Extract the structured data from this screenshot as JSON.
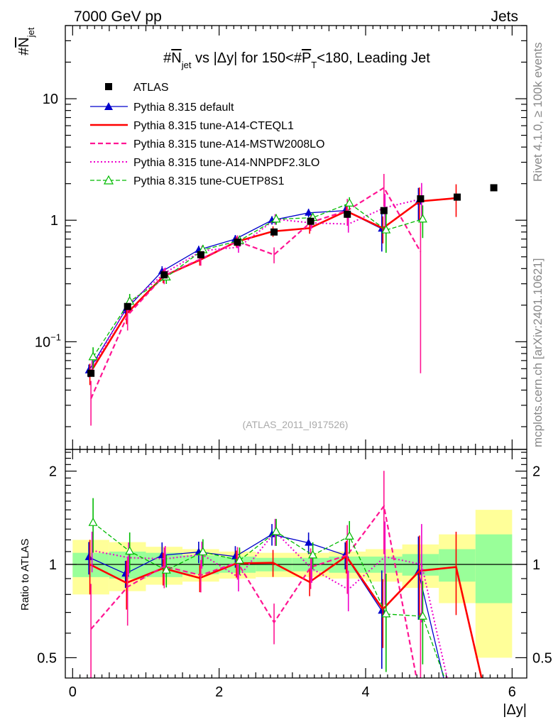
{
  "header": {
    "left": "7000 GeV pp",
    "right": "Jets",
    "side_top": "Rivet 4.1.0, ≥ 100k events",
    "side_bottom": "mcplots.cern.ch [arXiv:2401.10621]",
    "watermark": "(ATLAS_2011_I917526)"
  },
  "colors": {
    "data": "#000000",
    "default": "#0000cc",
    "cteql1": "#ff0000",
    "mstw": "#ff1493",
    "nnpdf": "#ee00cc",
    "cuetp": "#00bb00",
    "band_inner": "#99ff99",
    "band_outer": "#ffff99"
  },
  "chart_data": {
    "type": "line",
    "title": "#N_jet vs |Δy| for 150<#P_T<180, Leading Jet",
    "title_parts": {
      "a": "#",
      "b": "N",
      "c": "jet",
      "d": " vs |Δy| for 150<#",
      "e": "P",
      "f": "T",
      "g": "<180, Leading Jet"
    },
    "ylabel_main": {
      "a": "#",
      "b": "N",
      "c": "jet"
    },
    "ylabel_ratio": "Ratio to ATLAS",
    "xlabel": "|Δy|",
    "xlim": [
      -0.1,
      6.2
    ],
    "ylim_main": [
      0.013,
      40
    ],
    "yscale_main": "log",
    "ylim_ratio": [
      0.43,
      2.35
    ],
    "yscale_ratio": "log",
    "x_ticks": [
      {
        "v": 0,
        "label": "0"
      },
      {
        "v": 2,
        "label": "2"
      },
      {
        "v": 4,
        "label": "4"
      },
      {
        "v": 6,
        "label": "6"
      }
    ],
    "main_y_ticks": [
      {
        "v": 0.1,
        "label": "10",
        "exp": "−1"
      },
      {
        "v": 1,
        "label": "1",
        "exp": ""
      },
      {
        "v": 10,
        "label": "10",
        "exp": ""
      }
    ],
    "ratio_y_ticks": [
      {
        "v": 0.5,
        "label": "0.5"
      },
      {
        "v": 1,
        "label": "1"
      },
      {
        "v": 2,
        "label": "2"
      }
    ],
    "x": [
      0.25,
      0.75,
      1.25,
      1.75,
      2.25,
      2.75,
      3.25,
      3.75,
      4.25,
      4.75,
      5.25,
      5.75
    ],
    "data": {
      "name": "ATLAS",
      "values": [
        0.055,
        0.195,
        0.355,
        0.52,
        0.66,
        0.8,
        0.98,
        1.12,
        1.2,
        1.5,
        1.55,
        1.85
      ],
      "band_inner": [
        0.09,
        0.1,
        0.09,
        0.07,
        0.06,
        0.05,
        0.05,
        0.06,
        0.06,
        0.08,
        0.12,
        0.25
      ],
      "band_outer": [
        0.2,
        0.18,
        0.14,
        0.12,
        0.1,
        0.09,
        0.09,
        0.1,
        0.12,
        0.16,
        0.25,
        0.5
      ]
    },
    "series": [
      {
        "name": "Pythia 8.315 default",
        "key": "default",
        "dash": "",
        "width": 1.3,
        "marker": "triangle",
        "values": [
          0.058,
          0.182,
          0.38,
          0.57,
          0.7,
          1.0,
          1.15,
          1.2,
          0.85,
          1.42,
          null,
          null
        ],
        "err": [
          0.12,
          0.1,
          0.1,
          0.08,
          0.08,
          0.08,
          0.08,
          0.1,
          0.35,
          0.3,
          0,
          0
        ]
      },
      {
        "name": "Pythia 8.315 tune-A14-CTEQL1",
        "key": "cteql1",
        "dash": "",
        "width": 2.6,
        "marker": "none",
        "values": [
          0.055,
          0.17,
          0.345,
          0.47,
          0.665,
          0.81,
          0.86,
          1.19,
          0.86,
          1.43,
          1.52,
          null
        ],
        "err": [
          0.2,
          0.18,
          0.12,
          0.1,
          0.1,
          0.1,
          0.1,
          0.12,
          0.25,
          0.3,
          0.3,
          0
        ]
      },
      {
        "name": "Pythia 8.315 tune-A14-MSTW2008LO",
        "key": "mstw",
        "dash": "7,4",
        "width": 2.2,
        "marker": "none",
        "values": [
          0.034,
          0.165,
          0.35,
          0.48,
          0.67,
          0.52,
          0.96,
          1.2,
          1.85,
          0.55,
          null,
          null
        ],
        "err": [
          0.4,
          0.25,
          0.15,
          0.12,
          0.12,
          0.15,
          0.15,
          0.25,
          0.3,
          0.9,
          0,
          0
        ]
      },
      {
        "name": "Pythia 8.315 tune-A14-NNPDF2.3LO",
        "key": "nnpdf",
        "dash": "2,3",
        "width": 2.0,
        "marker": "none",
        "values": [
          0.061,
          0.205,
          0.37,
          0.56,
          0.6,
          1.02,
          0.95,
          0.93,
          1.27,
          1.5,
          null,
          null
        ],
        "err": [
          0.15,
          0.12,
          0.1,
          0.1,
          0.1,
          0.1,
          0.1,
          0.15,
          0.3,
          0.35,
          0,
          0
        ]
      },
      {
        "name": "Pythia 8.315 tune-CUETP8S1",
        "key": "cuetp",
        "dash": "6,3",
        "width": 1.3,
        "marker": "open-triangle",
        "values": [
          0.075,
          0.215,
          0.34,
          0.57,
          0.68,
          1.02,
          1.05,
          1.38,
          0.83,
          1.02,
          null,
          null
        ],
        "err": [
          0.2,
          0.15,
          0.12,
          0.1,
          0.1,
          0.1,
          0.1,
          0.12,
          0.35,
          0.3,
          0,
          0
        ]
      }
    ]
  }
}
